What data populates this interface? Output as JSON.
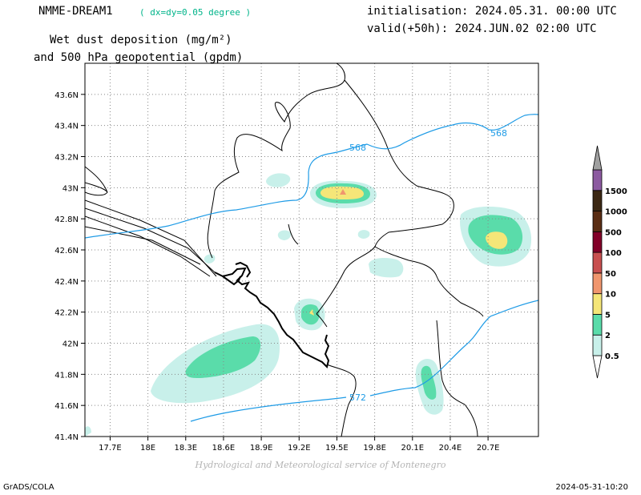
{
  "header": {
    "model_name": "NMME-DREAM1",
    "resolution": "( dx=dy=0.05 degree )",
    "field_line1": "Wet dust deposition (mg/m²)",
    "field_line2": "and 500 hPa geopotential (gpdm)",
    "initialisation": "initialisation: 2024.05.31. 00:00 UTC",
    "valid": "valid(+50h): 2024.JUN.02 02:00 UTC"
  },
  "map": {
    "lat_ticks": [
      "41.4N",
      "41.6N",
      "41.8N",
      "42N",
      "42.2N",
      "42.4N",
      "42.6N",
      "42.8N",
      "43N",
      "43.2N",
      "43.4N",
      "43.6N"
    ],
    "lon_ticks": [
      "17.7E",
      "18E",
      "18.3E",
      "18.6E",
      "18.9E",
      "19.2E",
      "19.5E",
      "19.8E",
      "20.1E",
      "20.4E",
      "20.7E"
    ],
    "contour_labels": [
      "568",
      "568",
      "572"
    ],
    "contour_color": "#1e9be6",
    "border_color": "#000000",
    "grid": true
  },
  "colorbar": {
    "levels": [
      "0.5",
      "2",
      "5",
      "10",
      "50",
      "100",
      "500",
      "1000",
      "1500"
    ],
    "colors": [
      "#c8f0ea",
      "#5adcaa",
      "#f5e678",
      "#f0966e",
      "#c85050",
      "#820028",
      "#5a2d14",
      "#3c2814",
      "#8c5aa0",
      "#a0a0a0"
    ]
  },
  "footer": {
    "credit": "Hydrological and Meteorological service of Montenegro",
    "software": "GrADS/COLA",
    "timestamp": "2024-05-31-10:20"
  }
}
